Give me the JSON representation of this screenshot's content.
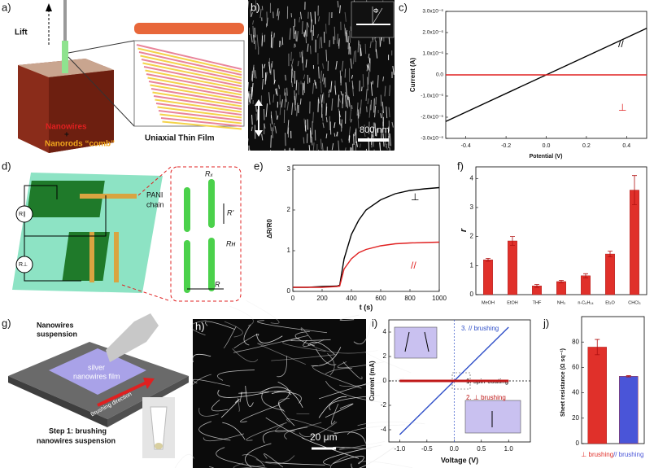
{
  "figure_a": {
    "label": "a)",
    "lift": "Lift",
    "nanowires": "Nanowires",
    "plus": "+",
    "comb": "Nanorods “comb”",
    "film": "Uniaxial Thin Film"
  },
  "figure_b": {
    "label": "b)",
    "scale_bar": "800 nm",
    "angle": "Φ"
  },
  "figure_d": {
    "label": "d)",
    "r_parallel": "R∥",
    "r_perp": "R⊥",
    "chain_1": "PANI",
    "chain_2": "chain",
    "rx": "Rₓ",
    "r_prime": "R'",
    "rh": "Rʜ",
    "r": "R"
  },
  "figure_g": {
    "label": "g)",
    "suspension_1": "Nanowires",
    "suspension_2": "suspension",
    "film_1": "silver",
    "film_2": "nanowires film",
    "direction": "Brushing direction",
    "step_1": "Step 1: brushing",
    "step_2": "nanowires suspension"
  },
  "figure_h": {
    "label": "h)",
    "scale_bar": "20 μm"
  },
  "chart_data": [
    {
      "type": "line",
      "label": "c)",
      "x_label": "Potential (V)",
      "y_label": "Current  (A)",
      "x": [
        -0.5,
        0.5
      ],
      "xlim": [
        -0.5,
        0.5
      ],
      "xticks": [
        -0.4,
        -0.2,
        {
          "value": 0,
          "label": "0.0"
        },
        0.2,
        0.4
      ],
      "ylim": [
        -3e-06,
        3e-06
      ],
      "yticks": [
        {
          "value": -3e-06,
          "label": "-3.0x10⁻⁶"
        },
        {
          "value": -2e-06,
          "label": "-2.0x10⁻⁶"
        },
        {
          "value": -1e-06,
          "label": "-1.0x10⁻⁶"
        },
        {
          "value": 0,
          "label": "0.0"
        },
        {
          "value": 1e-06,
          "label": "1.0x10⁻⁶"
        },
        {
          "value": 2e-06,
          "label": "2.0x10⁻⁶"
        },
        {
          "value": 3e-06,
          "label": "3.0x10⁻⁶"
        }
      ],
      "series": [
        {
          "name": "//",
          "color": "#000000",
          "values": [
            -2.2e-06,
            2.2e-06
          ]
        },
        {
          "name": "⊥",
          "color": "#e02020",
          "values": [
            0,
            0
          ]
        }
      ]
    },
    {
      "type": "line",
      "label": "e)",
      "x_label": "t (s)",
      "y_label": "ΔR/R0",
      "x": [
        0,
        100,
        200,
        300,
        320,
        350,
        400,
        450,
        500,
        600,
        700,
        800,
        900,
        1000
      ],
      "xlim": [
        0,
        1000
      ],
      "xticks": [
        0,
        200,
        400,
        600,
        800,
        1000
      ],
      "ylim": [
        0,
        3.1
      ],
      "yticks": [
        0,
        1,
        2,
        3
      ],
      "series": [
        {
          "name": "⊥",
          "color": "#000000",
          "values": [
            0.1,
            0.1,
            0.12,
            0.13,
            0.15,
            0.8,
            1.4,
            1.75,
            2.0,
            2.25,
            2.4,
            2.48,
            2.52,
            2.55
          ]
        },
        {
          "name": "//",
          "color": "#e02020",
          "values": [
            0.1,
            0.1,
            0.1,
            0.12,
            0.13,
            0.55,
            0.8,
            0.95,
            1.03,
            1.12,
            1.17,
            1.19,
            1.2,
            1.21
          ]
        }
      ]
    },
    {
      "type": "bar",
      "label": "f)",
      "y_label": "r",
      "categories": [
        "MeOH",
        "EtOH",
        "THF",
        "NH₃",
        "n-C₆H₁₄",
        "Et₂O",
        "CHCl₃"
      ],
      "values": [
        1.2,
        1.85,
        0.3,
        0.45,
        0.65,
        1.4,
        3.6
      ],
      "errors": [
        0.05,
        0.15,
        0.05,
        0.04,
        0.07,
        0.1,
        0.5
      ],
      "color": "#e0302a",
      "ylim": [
        0,
        4.4
      ],
      "yticks": [
        0,
        1,
        2,
        3,
        4
      ]
    },
    {
      "type": "line",
      "label": "i)",
      "x_label": "Voltage  (V)",
      "y_label": "Current  (mA)",
      "x": [
        -1,
        1
      ],
      "xlim": [
        -1.2,
        1.4
      ],
      "xticks": [
        {
          "value": -1,
          "label": "-1.0"
        },
        {
          "value": -0.5,
          "label": "-0.5"
        },
        {
          "value": 0,
          "label": "0.0"
        },
        0.5,
        {
          "value": 1,
          "label": "1.0"
        }
      ],
      "ylim": [
        -5,
        5
      ],
      "yticks": [
        -4,
        -2,
        0,
        2,
        4
      ],
      "series": [
        {
          "name": "3. // brushing",
          "color": "#2f4fc8",
          "values": [
            -4.4,
            4.4
          ]
        },
        {
          "name": "1. spin-coating",
          "color": "#000000",
          "values": [
            0,
            0
          ]
        },
        {
          "name": "2. ⊥ brushing",
          "color": "#c01818",
          "values": [
            0,
            0
          ]
        }
      ]
    },
    {
      "type": "bar",
      "label": "j)",
      "y_label": "Sheet resistance  (Ω sq⁻¹)",
      "categories": [
        "⊥ brushing",
        "// brushing"
      ],
      "values": [
        76,
        53
      ],
      "errors": [
        6,
        0.5
      ],
      "colors": [
        "#e0302a",
        "#4a55d8"
      ],
      "ylim": [
        0,
        100
      ],
      "yticks": [
        0,
        20,
        40,
        60,
        80
      ]
    }
  ]
}
